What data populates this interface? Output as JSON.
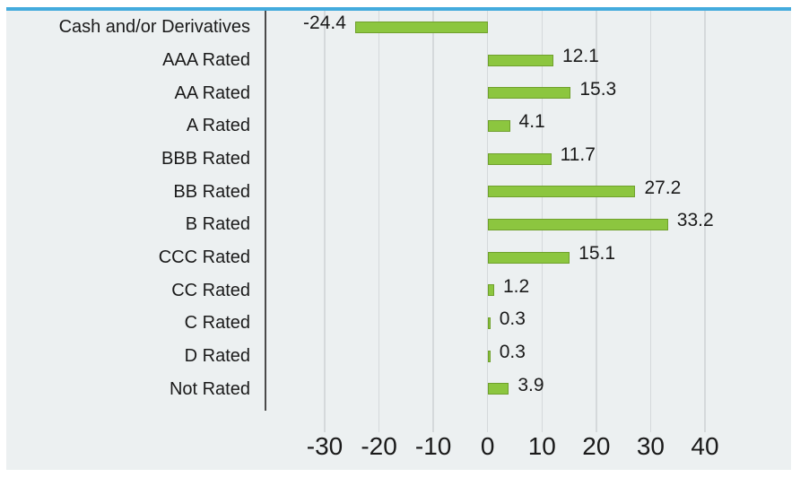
{
  "chart_data": {
    "type": "bar",
    "orientation": "horizontal",
    "title": "",
    "categories": [
      "Cash and/or Derivatives",
      "AAA Rated",
      "AA Rated",
      "A Rated",
      "BBB Rated",
      "BB Rated",
      "B Rated",
      "CCC Rated",
      "CC Rated",
      "C Rated",
      "D Rated",
      "Not Rated"
    ],
    "values": [
      -24.4,
      12.1,
      15.3,
      4.1,
      11.7,
      27.2,
      33.2,
      15.1,
      1.2,
      0.3,
      0.3,
      3.9
    ],
    "value_labels": [
      "-24.4",
      "12.1",
      "15.3",
      "4.1",
      "11.7",
      "27.2",
      "33.2",
      "15.1",
      "1.2",
      "0.3",
      "0.3",
      "3.9"
    ],
    "x_ticks": [
      "-30",
      "-20",
      "-10",
      "0",
      "10",
      "20",
      "30",
      "40"
    ],
    "x_tick_values": [
      -30,
      -20,
      -10,
      0,
      10,
      20,
      30,
      40
    ],
    "axis_range": [
      -30,
      40
    ],
    "grid": "vertical gridlines at each x tick",
    "legend": "none",
    "colors": {
      "bar_fill": "#8CC63F",
      "bar_border": "#6FA02C",
      "panel_background": "#ECF0F1",
      "top_rule": "#44ABDD",
      "gridline": "#D5D9DB",
      "axis_line": "#4A4A4A",
      "text": "#1A1A1A"
    }
  }
}
